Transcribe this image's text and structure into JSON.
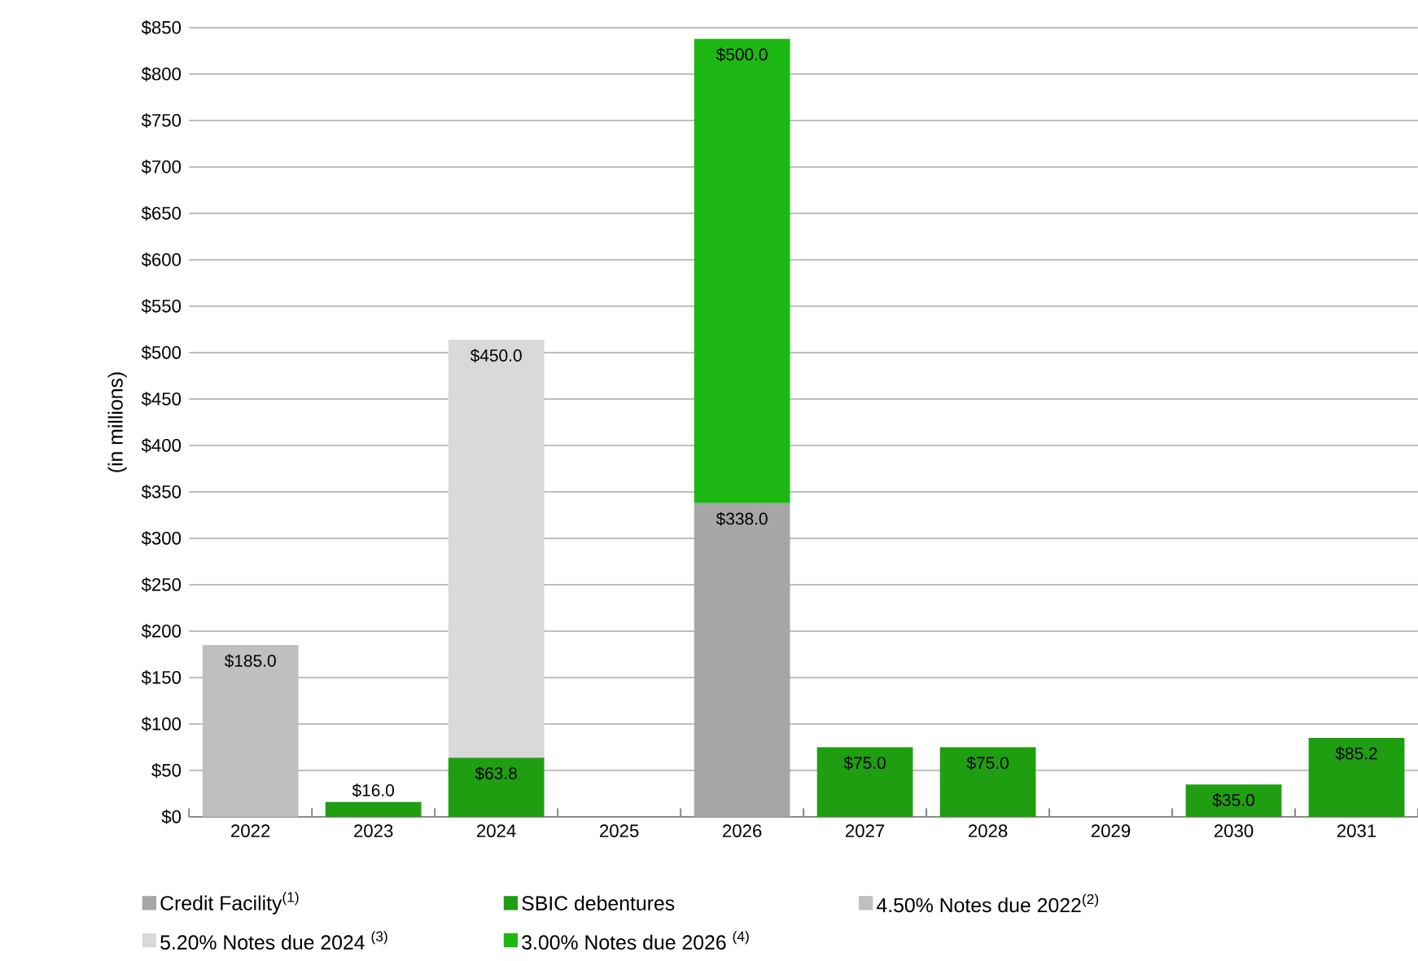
{
  "chart_data": {
    "type": "bar",
    "stacked": true,
    "ylabel": "(in millions)",
    "categories": [
      "2022",
      "2023",
      "2024",
      "2025",
      "2026",
      "2027",
      "2028",
      "2029",
      "2030",
      "2031"
    ],
    "ylim": [
      0,
      850
    ],
    "yticks": [
      {
        "value": 0,
        "label": "$0"
      },
      {
        "value": 50,
        "label": "$50"
      },
      {
        "value": 100,
        "label": "$100"
      },
      {
        "value": 150,
        "label": "$150"
      },
      {
        "value": 200,
        "label": "$200"
      },
      {
        "value": 250,
        "label": "$250"
      },
      {
        "value": 300,
        "label": "$300"
      },
      {
        "value": 350,
        "label": "$350"
      },
      {
        "value": 400,
        "label": "$400"
      },
      {
        "value": 450,
        "label": "$450"
      },
      {
        "value": 500,
        "label": "$500"
      },
      {
        "value": 550,
        "label": "$550"
      },
      {
        "value": 600,
        "label": "$600"
      },
      {
        "value": 650,
        "label": "$650"
      },
      {
        "value": 700,
        "label": "$700"
      },
      {
        "value": 750,
        "label": "$750"
      },
      {
        "value": 800,
        "label": "$800"
      },
      {
        "value": 850,
        "label": "$850"
      }
    ],
    "grid": "y",
    "legend": "bottom",
    "series": [
      {
        "name": "Credit Facility$^{(1)}$",
        "color": "#a6a6a6",
        "values": [
          null,
          null,
          null,
          null,
          338.0,
          null,
          null,
          null,
          null,
          null
        ],
        "value_labels": [
          null,
          null,
          null,
          null,
          "$338.0",
          null,
          null,
          null,
          null,
          null
        ]
      },
      {
        "name": "SBIC debentures",
        "color": "#1f9e12",
        "values": [
          null,
          16.0,
          63.8,
          null,
          null,
          75.0,
          75.0,
          null,
          35.0,
          85.2
        ],
        "value_labels": [
          null,
          "$16.0",
          "$63.8",
          null,
          null,
          "$75.0",
          "$75.0",
          null,
          "$35.0",
          "$85.2"
        ]
      },
      {
        "name": "4.50% Notes due 2022$^{(2)}$",
        "color": "#bfbfbf",
        "values": [
          185.0,
          null,
          null,
          null,
          null,
          null,
          null,
          null,
          null,
          null
        ],
        "value_labels": [
          "$185.0",
          null,
          null,
          null,
          null,
          null,
          null,
          null,
          null,
          null
        ]
      },
      {
        "name": "5.20% Notes due 2024 $^{(3)}$",
        "color": "#d9d9d9",
        "values": [
          null,
          null,
          450.0,
          null,
          null,
          null,
          null,
          null,
          null,
          null
        ],
        "value_labels": [
          null,
          null,
          "$450.0",
          null,
          null,
          null,
          null,
          null,
          null,
          null
        ]
      },
      {
        "name": "3.00% Notes due 2026 $^{(4)}$",
        "color": "#1db814",
        "values": [
          null,
          null,
          null,
          null,
          500.0,
          null,
          null,
          null,
          null,
          null
        ],
        "value_labels": [
          null,
          null,
          null,
          null,
          "$500.0",
          null,
          null,
          null,
          null,
          null
        ]
      }
    ]
  }
}
